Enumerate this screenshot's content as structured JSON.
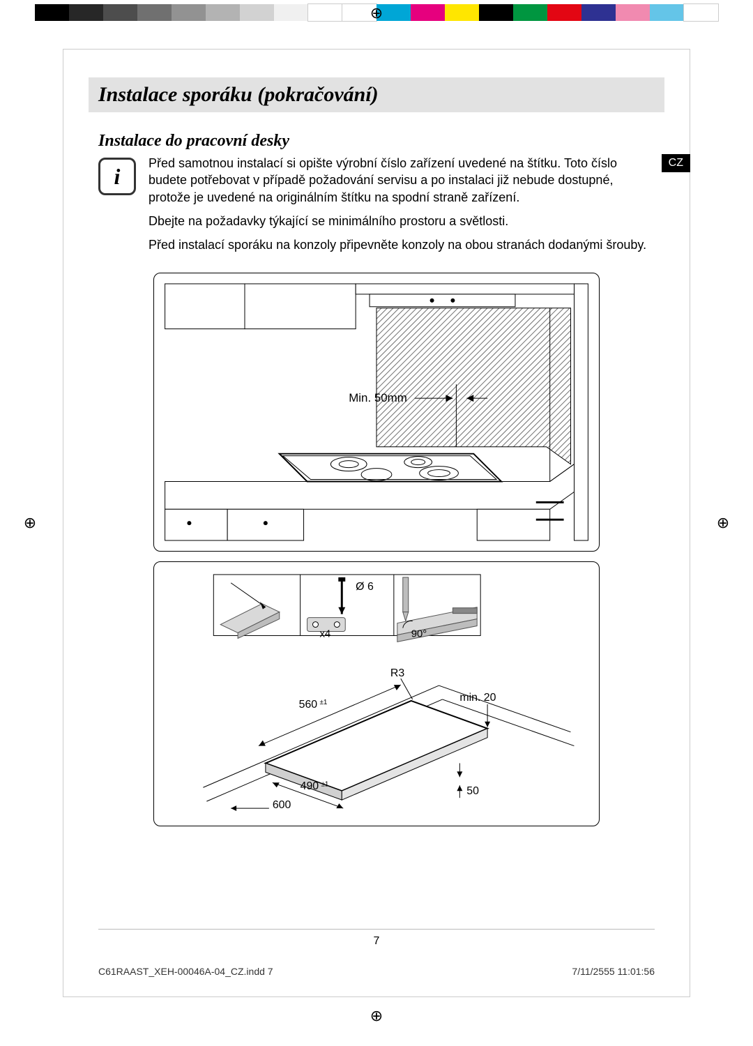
{
  "colorbar": [
    "#000000",
    "#272727",
    "#4d4d4d",
    "#707070",
    "#929292",
    "#b3b3b3",
    "#d2d2d2",
    "#f0f0f0",
    "#ffffff",
    "#ffffff",
    "#00a6d6",
    "#e6007e",
    "#ffe600",
    "#000000",
    "#009640",
    "#e30613",
    "#2e3192",
    "#f18ab0",
    "#64c5e8",
    "#ffffff"
  ],
  "header": {
    "title": "Instalace sporáku (pokračování)"
  },
  "lang_tab": "CZ",
  "section": {
    "heading": "Instalace do pracovní desky"
  },
  "info_icon_glyph": "i",
  "paragraphs": {
    "p1": "Před samotnou instalací si opište výrobní číslo zařízení uvedené na štítku. Toto číslo budete potřebovat v případě požadování servisu a po instalaci již nebude dostupné, protože je uvedené na originálním štítku na spodní straně zařízení.",
    "p2": "Dbejte na požadavky týkající se minimálního prostoru a světlosti.",
    "p3": "Před instalací sporáku na konzoly připevněte konzoly na obou stranách dodanými šrouby."
  },
  "diagram1": {
    "label_min50": "Min. 50mm"
  },
  "diagram2": {
    "phi6": "Ø 6",
    "x4": "x4",
    "deg90": "90°",
    "r3": "R3",
    "d560": "560",
    "d560_tol": "±1",
    "d490": "490",
    "d490_tol": "±1",
    "d600": "600",
    "min20": "min. 20",
    "d50": "50"
  },
  "page_number": "7",
  "footer": {
    "file": "C61RAAST_XEH-00046A-04_CZ.indd   7",
    "timestamp": "7/11/2555   11:01:56"
  },
  "colors": {
    "band_bg": "#e2e2e2",
    "text": "#000000",
    "rule": "#bbbbbb",
    "hatch": "#6f6f6f"
  }
}
